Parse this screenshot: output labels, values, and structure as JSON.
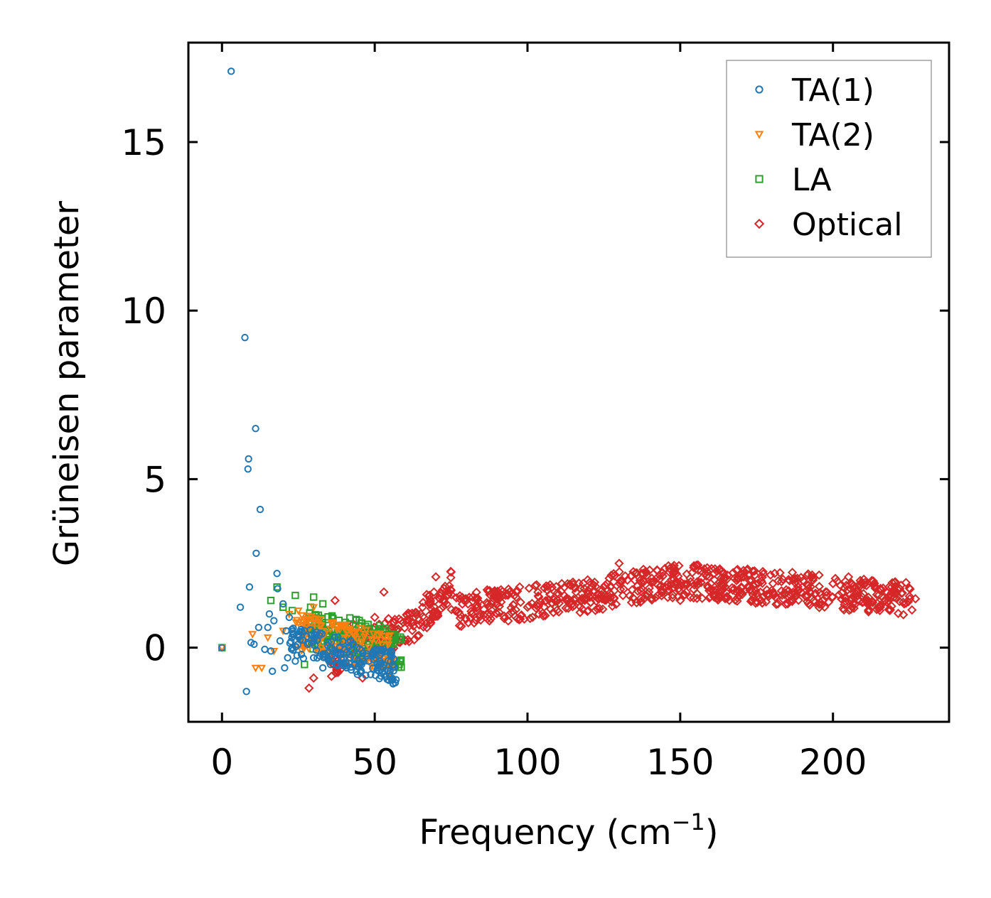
{
  "chart_data": {
    "type": "scatter",
    "title": "",
    "xlabel": "Frequency (cm",
    "xlabel_sup": "−1",
    "xlabel_close": ")",
    "ylabel": "Grüneisen parameter",
    "xlim": [
      -11,
      238
    ],
    "ylim": [
      -2.2,
      17.95
    ],
    "x_ticks": [
      0,
      50,
      100,
      150,
      200
    ],
    "y_ticks": [
      0,
      5,
      10,
      15
    ],
    "x_tick_labels": [
      "0",
      "50",
      "100",
      "150",
      "200"
    ],
    "y_tick_labels": [
      "0",
      "5",
      "10",
      "15"
    ],
    "grid": false,
    "legend_position": "top-right",
    "series": [
      {
        "name": "TA(1)",
        "marker": "circle",
        "color": "#1f77b4",
        "points": [
          [
            0,
            0
          ],
          [
            3,
            17.1
          ],
          [
            6,
            1.2
          ],
          [
            7.5,
            9.2
          ],
          [
            8,
            -1.3
          ],
          [
            8.5,
            5.3
          ],
          [
            8.7,
            5.6
          ],
          [
            9,
            1.8
          ],
          [
            9.5,
            0.15
          ],
          [
            10.5,
            0.1
          ],
          [
            11,
            6.5
          ],
          [
            11.2,
            2.8
          ],
          [
            12,
            0.6
          ],
          [
            12.5,
            4.1
          ],
          [
            14,
            -0.05
          ],
          [
            15,
            0.6
          ],
          [
            15.5,
            1.0
          ],
          [
            16,
            -0.1
          ],
          [
            16.5,
            -0.7
          ],
          [
            17,
            0.8
          ],
          [
            18,
            2.2
          ],
          [
            18.2,
            1.75
          ],
          [
            19,
            0.2
          ],
          [
            20,
            1.3
          ],
          [
            20.5,
            -0.6
          ],
          [
            21,
            0.5
          ],
          [
            21.5,
            -0.3
          ],
          [
            22,
            0.9
          ],
          [
            23,
            0.0
          ],
          [
            24,
            -0.4
          ],
          [
            25,
            0.4
          ],
          [
            26,
            -0.2
          ],
          [
            28,
            0.1
          ],
          [
            30,
            -0.3
          ],
          [
            33,
            -0.6
          ],
          [
            36,
            -0.4
          ],
          [
            39,
            -0.5
          ],
          [
            42,
            -0.3
          ],
          [
            45,
            -0.5
          ],
          [
            48,
            -0.4
          ],
          [
            51,
            -0.6
          ],
          [
            53,
            -0.5
          ],
          [
            55,
            -0.7
          ]
        ],
        "band": {
          "x_range": [
            22,
            57
          ],
          "y_center_start": 0.2,
          "y_center_end": -0.6,
          "spread": 0.5,
          "count": 170
        }
      },
      {
        "name": "TA(2)",
        "marker": "triangle-down",
        "color": "#ff7f0e",
        "points": [
          [
            0,
            0
          ],
          [
            10,
            0.4
          ],
          [
            11,
            -0.6
          ],
          [
            13,
            -0.6
          ],
          [
            15,
            0.3
          ],
          [
            17,
            -0.1
          ],
          [
            20,
            0.5
          ],
          [
            22,
            1.0
          ],
          [
            25,
            1.1
          ],
          [
            28,
            0.8
          ],
          [
            30,
            1.2
          ],
          [
            33,
            0.4
          ],
          [
            36,
            0.7
          ],
          [
            40,
            0.3
          ],
          [
            45,
            0.0
          ],
          [
            50,
            -0.3
          ],
          [
            55,
            -0.9
          ]
        ],
        "band": {
          "x_range": [
            24,
            56
          ],
          "y_center_start": 0.5,
          "y_center_end": -0.2,
          "spread": 0.55,
          "count": 150
        }
      },
      {
        "name": "LA",
        "marker": "square",
        "color": "#2ca02c",
        "points": [
          [
            0,
            0
          ],
          [
            16,
            1.4
          ],
          [
            18,
            1.8
          ],
          [
            20,
            1.2
          ],
          [
            23,
            1.1
          ],
          [
            24,
            1.55
          ],
          [
            27,
            -0.5
          ],
          [
            29,
            1.2
          ],
          [
            30,
            1.5
          ],
          [
            33,
            1.3
          ],
          [
            36,
            0.9
          ],
          [
            40,
            0.4
          ],
          [
            45,
            0.2
          ],
          [
            50,
            -0.2
          ],
          [
            55,
            0.1
          ],
          [
            58,
            -0.5
          ]
        ],
        "band": {
          "x_range": [
            28,
            59
          ],
          "y_center_start": 0.6,
          "y_center_end": -0.1,
          "spread": 0.6,
          "count": 170
        }
      },
      {
        "name": "Optical",
        "marker": "diamond",
        "color": "#d62728",
        "points": [
          [
            28.5,
            -1.2
          ],
          [
            30,
            -0.9
          ],
          [
            37,
            1.4
          ],
          [
            43,
            0.7
          ],
          [
            46,
            -0.9
          ],
          [
            50,
            0.9
          ],
          [
            53,
            1.65
          ],
          [
            60,
            0.2
          ],
          [
            65,
            1.0
          ],
          [
            70,
            2.1
          ],
          [
            75,
            1.7
          ],
          [
            80,
            1.4
          ],
          [
            90,
            1.3
          ],
          [
            100,
            1.2
          ],
          [
            110,
            1.4
          ],
          [
            120,
            1.6
          ],
          [
            125,
            1.8
          ],
          [
            130,
            2.5
          ],
          [
            140,
            2.3
          ],
          [
            145,
            2.35
          ],
          [
            150,
            1.4
          ],
          [
            160,
            1.9
          ],
          [
            170,
            1.8
          ],
          [
            180,
            1.7
          ],
          [
            190,
            1.8
          ],
          [
            200,
            1.9
          ],
          [
            210,
            1.6
          ],
          [
            220,
            1.5
          ],
          [
            227,
            1.45
          ]
        ],
        "band": {
          "x_range": [
            35,
            226
          ],
          "y_center_start": 0.2,
          "y_center_end": 1.5,
          "spread": 0.5,
          "count": 900
        }
      }
    ]
  }
}
